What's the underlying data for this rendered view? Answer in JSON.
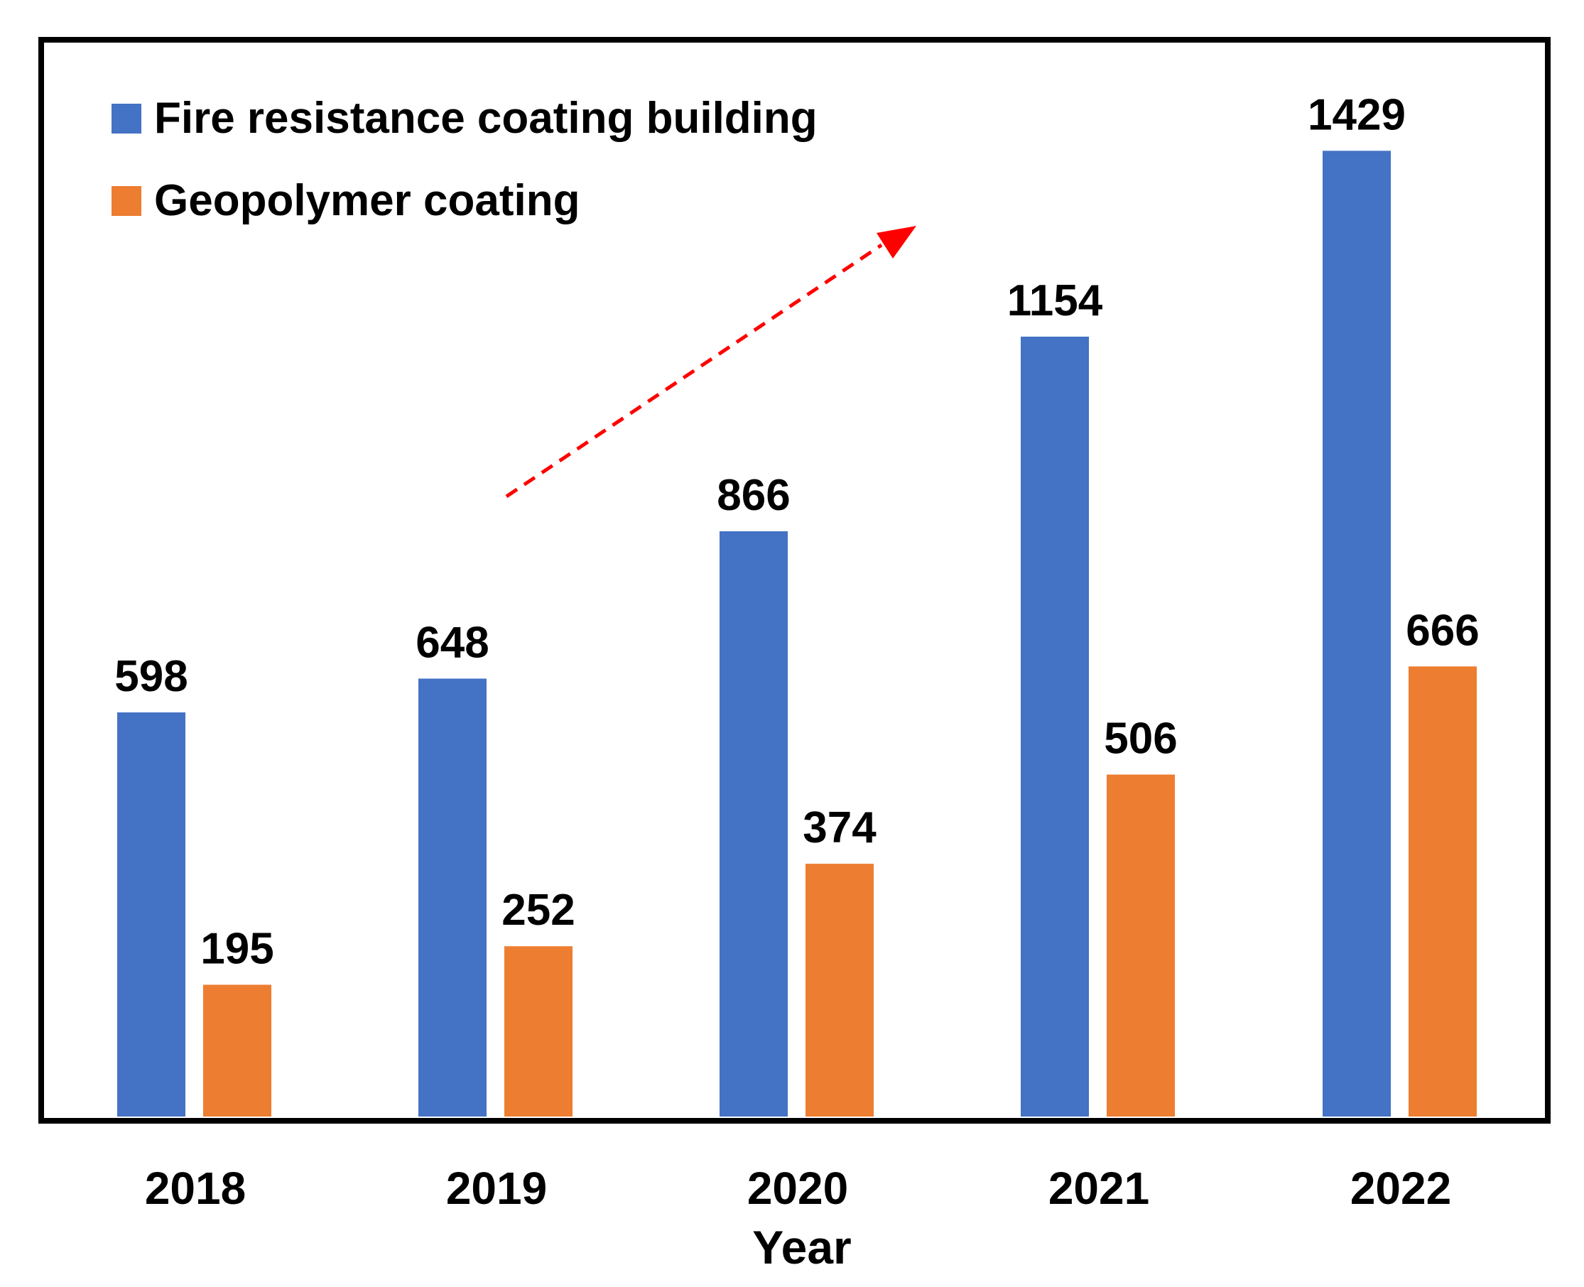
{
  "colors": {
    "series_1": "#4472C4",
    "series_2": "#ED7D31",
    "trend_arrow": "#FF0000",
    "frame": "#000000",
    "text": "#000000"
  },
  "chart_data": {
    "type": "bar",
    "title": "",
    "xlabel": "Year",
    "ylabel": "",
    "categories": [
      "2018",
      "2019",
      "2020",
      "2021",
      "2022"
    ],
    "series": [
      {
        "name": "Fire resistance coating building",
        "values": [
          598,
          648,
          866,
          1154,
          1429
        ]
      },
      {
        "name": "Geopolymer coating",
        "values": [
          195,
          252,
          374,
          506,
          666
        ]
      }
    ],
    "ylim": [
      0,
      1600
    ],
    "grid": false,
    "legend_position": "top-left",
    "annotations": [
      {
        "type": "dashed-arrow",
        "meaning": "increasing trend"
      }
    ]
  }
}
